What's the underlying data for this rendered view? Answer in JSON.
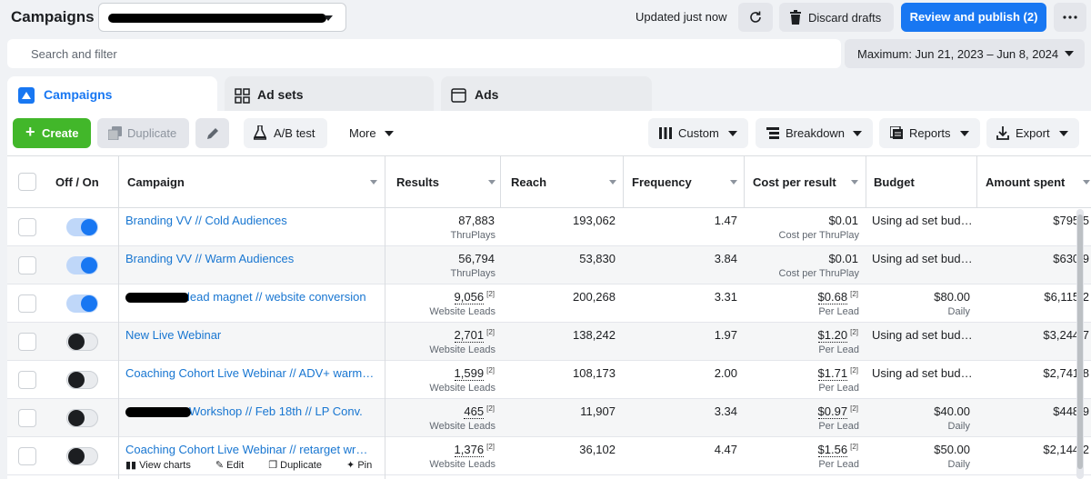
{
  "header": {
    "title": "Campaigns",
    "updated": "Updated just now",
    "discard_label": "Discard drafts",
    "review_label": "Review and publish (2)"
  },
  "search": {
    "placeholder": "Search and filter"
  },
  "date_range": {
    "label": "Maximum: Jun 21, 2023 – Jun 8, 2024"
  },
  "tabs": [
    {
      "label": "Campaigns",
      "active": true,
      "icon": "campaigns-icon"
    },
    {
      "label": "Ad sets",
      "active": false,
      "icon": "grid-icon"
    },
    {
      "label": "Ads",
      "active": false,
      "icon": "ad-icon"
    }
  ],
  "toolbar": {
    "create": "Create",
    "duplicate": "Duplicate",
    "ab_test": "A/B test",
    "more": "More",
    "custom": "Custom",
    "breakdown": "Breakdown",
    "reports": "Reports",
    "export": "Export"
  },
  "columns": {
    "off_on": "Off / On",
    "campaign": "Campaign",
    "results": "Results",
    "reach": "Reach",
    "frequency": "Frequency",
    "cost_per_result": "Cost per result",
    "budget": "Budget",
    "amount_spent": "Amount spent"
  },
  "rows": [
    {
      "on": true,
      "name": "Branding VV // Cold Audiences",
      "results": "87,883",
      "results_sub": "ThruPlays",
      "reach": "193,062",
      "frequency": "1.47",
      "cpr": "$0.01",
      "cpr_sub": "Cost per ThruPlay",
      "budget": "Using ad set bud…",
      "budget_sub": "",
      "spent": "$795.5"
    },
    {
      "on": true,
      "name": "Branding VV // Warm Audiences",
      "results": "56,794",
      "results_sub": "ThruPlays",
      "reach": "53,830",
      "frequency": "3.84",
      "cpr": "$0.01",
      "cpr_sub": "Cost per ThruPlay",
      "budget": "Using ad set bud…",
      "budget_sub": "",
      "spent": "$630.9"
    },
    {
      "on": true,
      "name": "lead magnet // website conversion",
      "results": "9,056",
      "results_sub": "Website Leads",
      "reach": "200,268",
      "frequency": "3.31",
      "cpr": "$0.68",
      "cpr_sub": "Per Lead",
      "budget": "$80.00",
      "budget_sub": "Daily",
      "spent": "$6,115.2"
    },
    {
      "on": false,
      "name": "New Live Webinar",
      "results": "2,701",
      "results_sub": "Website Leads",
      "reach": "138,242",
      "frequency": "1.97",
      "cpr": "$1.20",
      "cpr_sub": "Per Lead",
      "budget": "Using ad set bud…",
      "budget_sub": "",
      "spent": "$3,244.7"
    },
    {
      "on": false,
      "name": "Coaching Cohort Live Webinar // ADV+ warm a…",
      "results": "1,599",
      "results_sub": "Website Leads",
      "reach": "108,173",
      "frequency": "2.00",
      "cpr": "$1.71",
      "cpr_sub": "Per Lead",
      "budget": "Using ad set bud…",
      "budget_sub": "",
      "spent": "$2,741.8"
    },
    {
      "on": false,
      "name": "Workshop // Feb 18th // LP Conv.",
      "results": "465",
      "results_sub": "Website Leads",
      "reach": "11,907",
      "frequency": "3.34",
      "cpr": "$0.97",
      "cpr_sub": "Per Lead",
      "budget": "$40.00",
      "budget_sub": "Daily",
      "spent": "$448.9"
    },
    {
      "on": false,
      "name": "Coaching Cohort Live Webinar // retarget wrm …",
      "results": "1,376",
      "results_sub": "Website Leads",
      "reach": "36,102",
      "frequency": "4.47",
      "cpr": "$1.56",
      "cpr_sub": "Per Lead",
      "budget": "$50.00",
      "budget_sub": "Daily",
      "spent": "$2,144.2"
    }
  ],
  "row_actions": {
    "view_charts": "View charts",
    "edit": "Edit",
    "duplicate": "Duplicate",
    "pin": "Pin"
  },
  "attribution_mark": "[2]",
  "colors": {
    "accent": "#1877f2",
    "create_green": "#42b72a",
    "link": "#1876d1"
  }
}
